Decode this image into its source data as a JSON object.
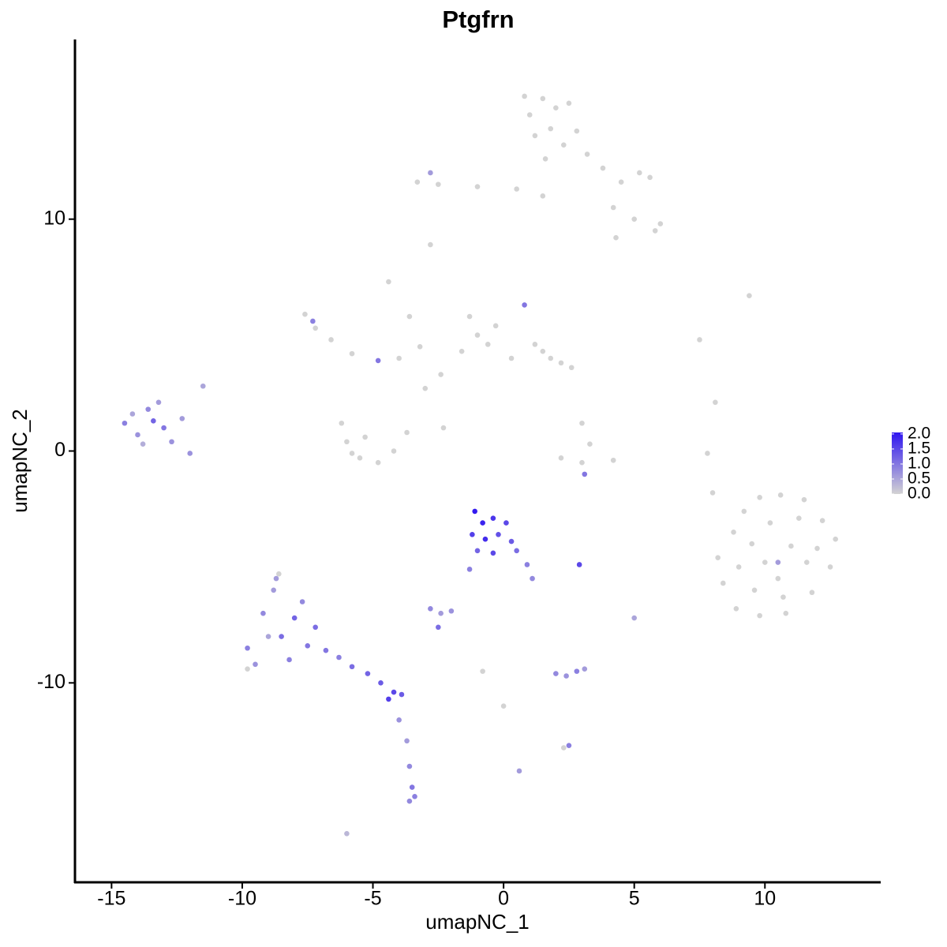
{
  "chart_data": {
    "type": "scatter",
    "title": "Ptgfrn",
    "x_label": "umapNC_1",
    "y_label": "umapNC_2",
    "xlim": [
      -16.4,
      14.4
    ],
    "ylim": [
      -18.6,
      17.75
    ],
    "xticks": [
      -15,
      -10,
      -5,
      0,
      5,
      10
    ],
    "yticks": [
      -10,
      0,
      10
    ],
    "x": [
      1.0,
      1.5,
      2.0,
      2.5,
      1.2,
      1.8,
      2.3,
      0.8,
      2.8,
      3.2,
      1.6,
      0.5,
      -1.0,
      -2.5,
      -3.3,
      3.8,
      4.5,
      5.2,
      5.6,
      4.2,
      5.0,
      5.8,
      6.0,
      4.3,
      1.5,
      -2.8,
      -4.4,
      9.4,
      7.5,
      8.1,
      7.8,
      8.0,
      -1.3,
      -1.0,
      -0.6,
      -1.6,
      -0.3,
      1.2,
      1.8,
      2.2,
      2.6,
      1.5,
      -7.6,
      -7.2,
      -6.6,
      -5.8,
      -4.0,
      -3.2,
      -2.4,
      -3.0,
      -3.6,
      0.3,
      -6.2,
      -6.0,
      -5.5,
      -4.8,
      -4.2,
      -3.7,
      -5.3,
      -5.8,
      -2.3,
      3.0,
      3.3,
      3.0,
      2.2,
      4.2,
      8.2,
      8.8,
      9.2,
      9.8,
      10.6,
      11.5,
      12.2,
      12.7,
      12.5,
      11.8,
      10.8,
      9.8,
      8.9,
      8.4,
      9.5,
      10.2,
      11.0,
      10.5,
      9.6,
      11.6,
      10.0,
      11.3,
      9.0,
      12.0,
      10.7,
      -8.6,
      -9.8,
      -0.8,
      0.0,
      2.3,
      -6.0,
      -14.5,
      -14.0,
      -13.6,
      -13.2,
      -14.2,
      -13.0,
      -12.7,
      -13.8,
      -12.3,
      -12.0,
      -11.5,
      -13.4,
      -9.8,
      -9.5,
      -9.2,
      -8.8,
      -8.5,
      -8.2,
      -8.0,
      -7.7,
      -7.5,
      -9.0,
      -8.7,
      -7.2,
      -6.8,
      -6.3,
      -5.8,
      -5.2,
      -4.7,
      -4.2,
      -3.9,
      -4.4,
      -4.0,
      -3.7,
      -3.6,
      -3.5,
      -3.4,
      -3.6,
      -1.1,
      -0.8,
      -0.4,
      0.1,
      -1.2,
      -0.7,
      -0.2,
      0.3,
      -1.0,
      -0.4,
      0.5,
      0.9,
      1.1,
      -1.3,
      -2.8,
      -2.4,
      -2.0,
      -2.5,
      2.0,
      2.4,
      2.8,
      3.1,
      2.5,
      2.9,
      0.6,
      5.0,
      -7.3,
      -4.8,
      -2.8,
      0.8,
      3.1,
      10.5
    ],
    "y": [
      14.5,
      15.2,
      14.8,
      15.0,
      13.6,
      13.9,
      13.2,
      15.3,
      13.8,
      12.8,
      12.6,
      11.3,
      11.4,
      11.5,
      11.6,
      12.2,
      11.6,
      12.0,
      11.8,
      10.5,
      10.0,
      9.5,
      9.8,
      9.2,
      11.0,
      8.9,
      7.3,
      6.7,
      4.8,
      2.1,
      -0.1,
      -1.8,
      5.8,
      5.0,
      4.6,
      4.3,
      5.4,
      4.6,
      4.0,
      3.8,
      3.6,
      4.3,
      5.9,
      5.3,
      4.8,
      4.2,
      4.0,
      4.5,
      3.3,
      2.7,
      5.8,
      4.0,
      1.2,
      0.4,
      -0.3,
      -0.5,
      0.0,
      0.8,
      0.6,
      -0.1,
      1.0,
      1.2,
      0.3,
      -0.5,
      -0.3,
      -0.4,
      -4.6,
      -3.5,
      -2.6,
      -2.0,
      -1.9,
      -2.1,
      -3.0,
      -3.8,
      -5.0,
      -6.1,
      -7.0,
      -7.1,
      -6.8,
      -5.7,
      -4.0,
      -3.1,
      -4.1,
      -5.5,
      -6.0,
      -4.8,
      -4.8,
      -2.9,
      -5.0,
      -4.2,
      -6.3,
      -5.3,
      -9.4,
      -9.5,
      -11.0,
      -12.8,
      -16.5,
      1.2,
      0.7,
      1.8,
      2.1,
      1.6,
      1.0,
      0.4,
      0.3,
      1.4,
      -0.1,
      2.8,
      1.3,
      -8.5,
      -9.2,
      -7.0,
      -6.0,
      -8.0,
      -9.0,
      -7.2,
      -6.5,
      -8.4,
      -8.0,
      -5.5,
      -7.6,
      -8.6,
      -8.9,
      -9.3,
      -9.6,
      -10.0,
      -10.4,
      -10.5,
      -10.7,
      -11.6,
      -12.5,
      -13.6,
      -14.5,
      -14.9,
      -15.1,
      -2.6,
      -3.1,
      -2.9,
      -3.1,
      -3.6,
      -3.8,
      -3.6,
      -3.9,
      -4.3,
      -4.4,
      -4.3,
      -4.9,
      -5.5,
      -5.1,
      -6.8,
      -7.0,
      -6.9,
      -7.6,
      -9.6,
      -9.7,
      -9.5,
      -9.4,
      -12.7,
      -4.9,
      -13.8,
      -7.2,
      5.6,
      3.9,
      12.0,
      6.3,
      -1.0,
      -4.8
    ],
    "expression": [
      0,
      0,
      0,
      0,
      0,
      0,
      0,
      0,
      0,
      0,
      0,
      0,
      0,
      0,
      0,
      0,
      0,
      0,
      0,
      0,
      0,
      0,
      0,
      0,
      0,
      0,
      0,
      0,
      0,
      0,
      0,
      0,
      0,
      0,
      0,
      0,
      0,
      0,
      0,
      0,
      0,
      0,
      0,
      0,
      0,
      0,
      0,
      0,
      0,
      0,
      0,
      0,
      0,
      0,
      0,
      0,
      0,
      0,
      0,
      0,
      0,
      0,
      0,
      0,
      0,
      0,
      0,
      0,
      0,
      0,
      0,
      0,
      0,
      0,
      0,
      0,
      0,
      0,
      0,
      0,
      0,
      0,
      0,
      0,
      0,
      0,
      0,
      0,
      0,
      0,
      0,
      0,
      0,
      0,
      0,
      0,
      0.3,
      0.9,
      0.7,
      0.8,
      0.6,
      0.5,
      1.0,
      0.7,
      0.4,
      0.6,
      0.7,
      0.5,
      1.2,
      0.9,
      0.7,
      0.8,
      0.6,
      1.1,
      0.9,
      1.2,
      0.8,
      1.0,
      0.5,
      0.6,
      1.1,
      1.0,
      0.9,
      1.1,
      1.2,
      1.3,
      1.5,
      1.3,
      1.6,
      0.7,
      0.6,
      0.8,
      1.0,
      0.9,
      0.8,
      2.0,
      1.9,
      1.7,
      1.5,
      1.6,
      1.8,
      1.4,
      1.3,
      1.2,
      1.5,
      1.1,
      0.9,
      0.8,
      0.9,
      0.8,
      0.6,
      0.7,
      1.1,
      0.8,
      0.7,
      0.9,
      0.6,
      0.9,
      1.5,
      0.6,
      0.5,
      0.9,
      1.0,
      0.6,
      1.0,
      1.0,
      0.6
    ],
    "colorlim": [
      0,
      2.05
    ],
    "color_low": "#d3d3d3",
    "color_high": "#2f15f0",
    "colorbar_ticks": [
      {
        "value": 0,
        "label": "0.0"
      },
      0.5,
      {
        "value": 1,
        "label": "1.0"
      },
      1.5,
      {
        "value": 2,
        "label": "2.0"
      }
    ]
  }
}
